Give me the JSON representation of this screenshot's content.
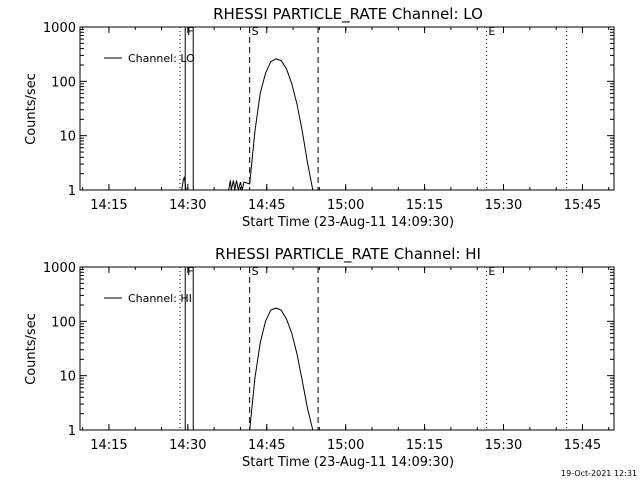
{
  "timestamp": "19-Oct-2021 12:31",
  "chart_data": [
    {
      "type": "line",
      "title": "RHESSI PARTICLE_RATE Channel: LO",
      "xlabel": "Start Time (23-Aug-11 14:09:30)",
      "ylabel": "Counts/sec",
      "yscale": "log",
      "ylim": [
        1,
        1000
      ],
      "xlim": [
        "14:09:30",
        "15:51:00"
      ],
      "x_ticks": [
        "14:15",
        "14:30",
        "14:45",
        "15:00",
        "15:15",
        "15:30",
        "15:45"
      ],
      "y_ticks": [
        "1",
        "10",
        "100",
        "1000"
      ],
      "legend": {
        "label": "Channel: LO",
        "position": "top-left"
      },
      "markers": [
        {
          "label": "F",
          "time": "14:29:30",
          "style": "solid"
        },
        {
          "label": "S",
          "time": "14:41:45",
          "style": "dashed"
        },
        {
          "label": "",
          "time": "14:54:45",
          "style": "dashed"
        },
        {
          "label": "E",
          "time": "15:26:45",
          "style": "dotted"
        },
        {
          "label": "",
          "time": "14:28:30",
          "style": "dotted"
        },
        {
          "label": "",
          "time": "15:42:00",
          "style": "dotted"
        }
      ],
      "series": [
        {
          "name": "Channel: LO",
          "x": [
            "14:28:50",
            "14:29:10",
            "14:29:20",
            "14:29:40",
            "14:37:45",
            "14:38:05",
            "14:38:15",
            "14:38:40",
            "14:38:55",
            "14:39:15",
            "14:39:35",
            "14:40:00",
            "14:40:20",
            "14:40:40",
            "14:41:45",
            "14:42:45",
            "14:43:45",
            "14:44:45",
            "14:45:45",
            "14:46:45",
            "14:47:45",
            "14:48:45",
            "14:49:45",
            "14:50:45",
            "14:51:45",
            "14:52:45",
            "14:53:45"
          ],
          "y": [
            1,
            1.6,
            1.7,
            1,
            1,
            1.5,
            1,
            1.5,
            1,
            1.5,
            1,
            1.4,
            1,
            1.4,
            1.3,
            12,
            60,
            140,
            230,
            260,
            240,
            170,
            90,
            38,
            12,
            3.2,
            1
          ]
        }
      ]
    },
    {
      "type": "line",
      "title": "RHESSI PARTICLE_RATE Channel: HI",
      "xlabel": "Start Time (23-Aug-11 14:09:30)",
      "ylabel": "Counts/sec",
      "yscale": "log",
      "ylim": [
        1,
        1000
      ],
      "xlim": [
        "14:09:30",
        "15:51:00"
      ],
      "x_ticks": [
        "14:15",
        "14:30",
        "14:45",
        "15:00",
        "15:15",
        "15:30",
        "15:45"
      ],
      "y_ticks": [
        "1",
        "10",
        "100",
        "1000"
      ],
      "legend": {
        "label": "Channel: HI",
        "position": "top-left"
      },
      "markers": [
        {
          "label": "F",
          "time": "14:29:30",
          "style": "solid"
        },
        {
          "label": "S",
          "time": "14:41:45",
          "style": "dashed"
        },
        {
          "label": "",
          "time": "14:54:45",
          "style": "dashed"
        },
        {
          "label": "E",
          "time": "15:26:45",
          "style": "dotted"
        },
        {
          "label": "",
          "time": "14:28:30",
          "style": "dotted"
        },
        {
          "label": "",
          "time": "15:42:00",
          "style": "dotted"
        }
      ],
      "series": [
        {
          "name": "Channel: HI",
          "x": [
            "14:41:45",
            "14:42:45",
            "14:43:45",
            "14:44:45",
            "14:45:45",
            "14:46:45",
            "14:47:45",
            "14:48:45",
            "14:49:45",
            "14:50:45",
            "14:51:45",
            "14:52:45",
            "14:53:45"
          ],
          "y": [
            1,
            9,
            40,
            100,
            160,
            175,
            160,
            110,
            60,
            25,
            8,
            2.5,
            1
          ]
        }
      ]
    }
  ]
}
